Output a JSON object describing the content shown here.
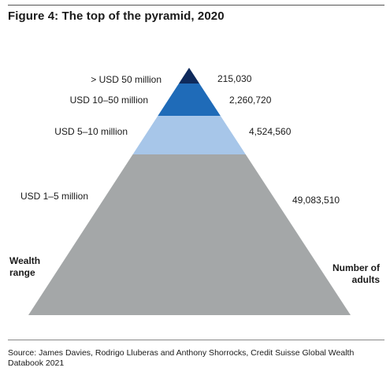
{
  "figure": {
    "title": "Figure 4: The top of the pyramid, 2020",
    "left_axis_label": [
      "Wealth",
      "range"
    ],
    "right_axis_label": [
      "Number of",
      "adults"
    ],
    "source": "Source: James Davies, Rodrigo Lluberas and Anthony Shorrocks, Credit Suisse Global Wealth Databook 2021"
  },
  "chart_data": {
    "type": "pyramid",
    "title": "Figure 4: The top of the pyramid, 2020",
    "tiers": [
      {
        "range": "> USD 50 million",
        "adults": "215,030",
        "value": 215030,
        "color": "#0f2a5c"
      },
      {
        "range": "USD 10–50 million",
        "adults": "2,260,720",
        "value": 2260720,
        "color": "#1f6bb8"
      },
      {
        "range": "USD 5–10 million",
        "adults": "4,524,560",
        "value": 4524560,
        "color": "#a7c6e9"
      },
      {
        "range": "USD 1–5 million",
        "adults": "49,083,510",
        "value": 49083510,
        "color": "#a4a7a8"
      }
    ]
  }
}
